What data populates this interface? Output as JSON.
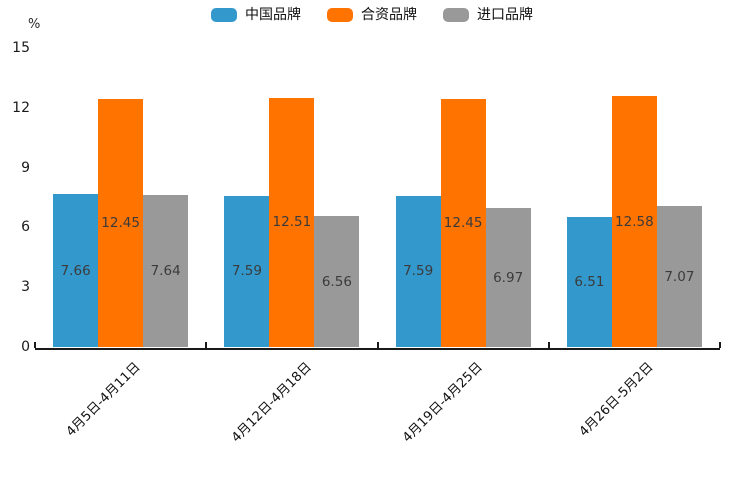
{
  "colors": {
    "blue": "#3398CC",
    "orange": "#FF7300",
    "gray": "#999999",
    "axis": "#1a1a1a",
    "value_label": "#3b3b3b"
  },
  "chart_data": {
    "type": "bar",
    "title": "",
    "ylabel": "%",
    "xlabel": "",
    "ylim": [
      0,
      15
    ],
    "yticks": [
      0,
      3,
      6,
      9,
      12,
      15
    ],
    "grid": false,
    "legend_position": "top",
    "categories": [
      "4月5日-4月11日",
      "4月12日-4月18日",
      "4月19日-4月25日",
      "4月26日-5月2日"
    ],
    "series": [
      {
        "name": "中国品牌",
        "color": "#3398CC",
        "values": [
          7.66,
          7.59,
          7.59,
          6.51
        ]
      },
      {
        "name": "合资品牌",
        "color": "#FF7300",
        "values": [
          12.45,
          12.51,
          12.45,
          12.58
        ]
      },
      {
        "name": "进口品牌",
        "color": "#999999",
        "values": [
          7.64,
          6.56,
          6.97,
          7.07
        ]
      }
    ]
  }
}
